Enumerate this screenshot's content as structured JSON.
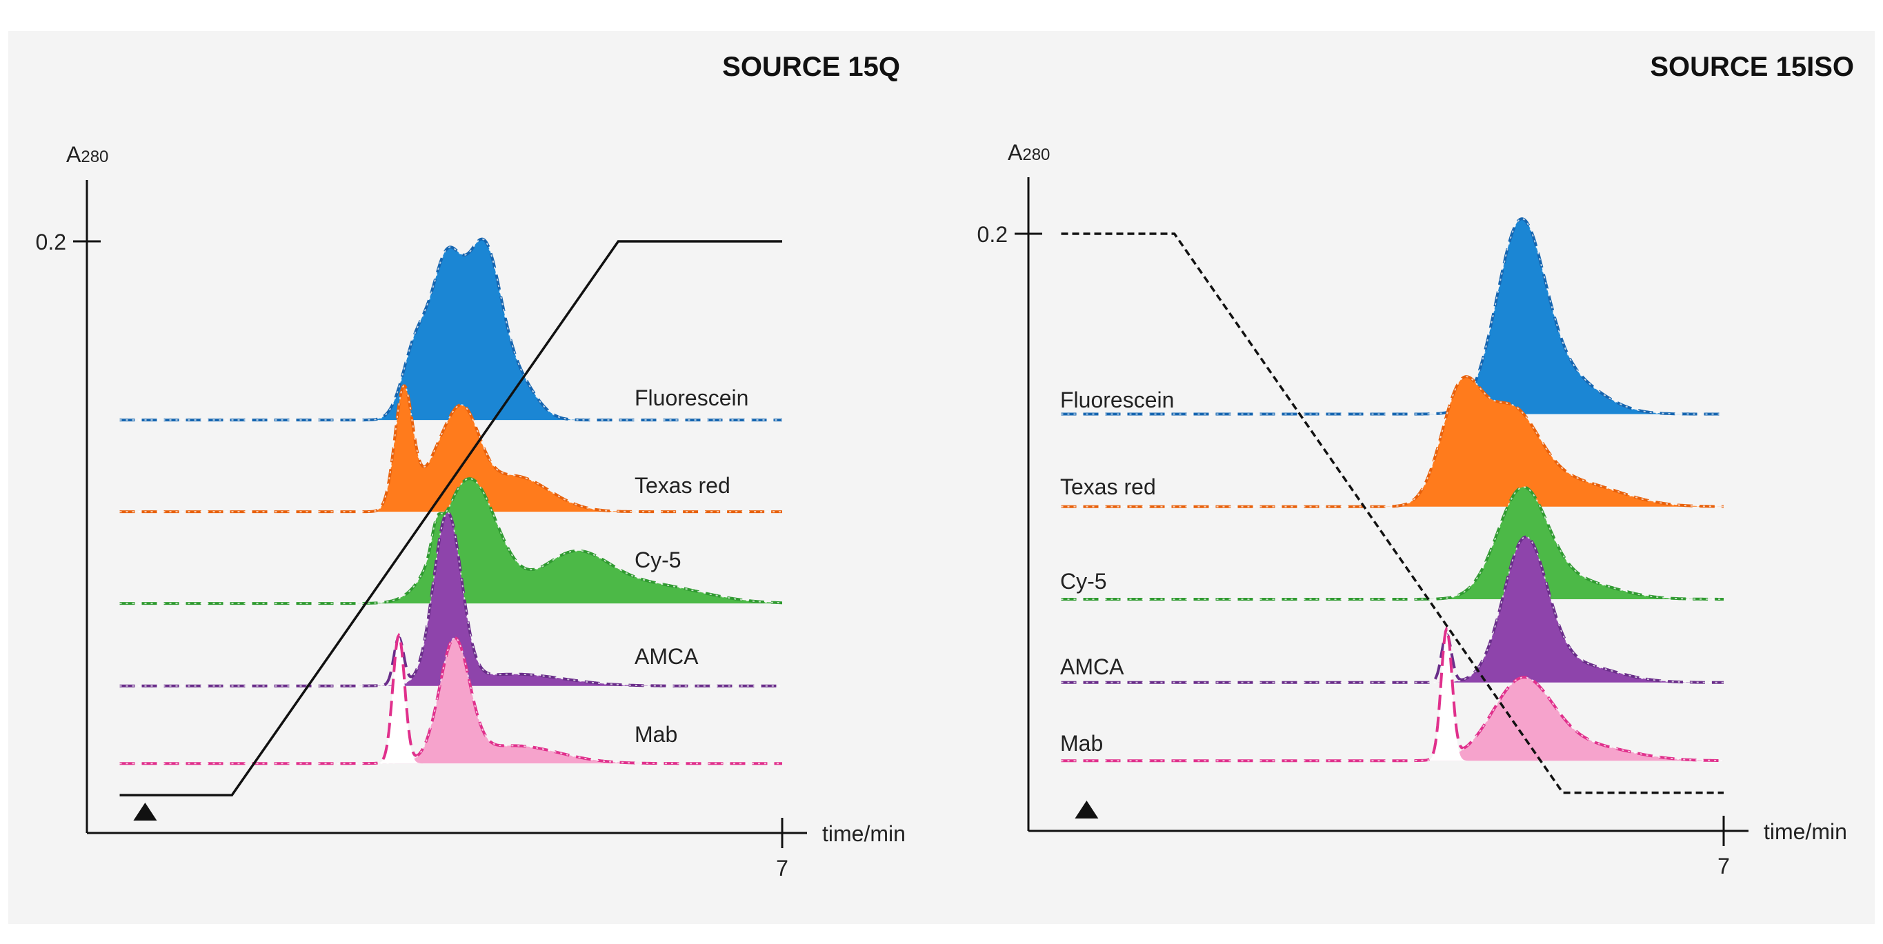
{
  "chart_data": [
    {
      "type": "line",
      "title": "SOURCE 15Q",
      "ylabel": {
        "main": "A",
        "sub": "280"
      },
      "xlabel": "time/min",
      "y_tick": "0.2",
      "x_tick": "7",
      "xlim": [
        0,
        7
      ],
      "ylim": [
        0,
        0.2
      ],
      "label_side": "right",
      "injection_marker_time": 0.6,
      "gradient": {
        "style": "solid",
        "points": [
          [
            0.33,
            0
          ],
          [
            1.46,
            0
          ],
          [
            5.35,
            100
          ],
          [
            7.0,
            100
          ]
        ]
      },
      "series": [
        {
          "name": "Fluorescein",
          "color": "#1b86d4",
          "stroke": "#1565b0",
          "offset": 0.1396,
          "peaks": [
            [
              3.3,
              0.022,
              0.13,
              true,
              false
            ],
            [
              3.62,
              0.052,
              0.16,
              true,
              false
            ],
            [
              4.0,
              0.056,
              0.17,
              true,
              false
            ],
            [
              4.35,
              0.012,
              0.18,
              true,
              false
            ]
          ]
        },
        {
          "name": "Texas red",
          "color": "#ff7b1c",
          "stroke": "#e8600a",
          "offset": 0.1086,
          "peaks": [
            [
              3.19,
              0.041,
              0.09,
              true,
              false
            ],
            [
              3.78,
              0.03,
              0.17,
              true,
              false
            ],
            [
              4.3,
              0.012,
              0.35,
              true,
              false
            ],
            [
              3.5,
              0.012,
              0.15,
              true,
              false
            ]
          ]
        },
        {
          "name": "Cy-5",
          "color": "#4cb947",
          "stroke": "#2f9a30",
          "offset": 0.0776,
          "peaks": [
            [
              3.85,
              0.042,
              0.28,
              true,
              false
            ],
            [
              4.9,
              0.016,
              0.35,
              true,
              false
            ],
            [
              5.7,
              0.006,
              0.5,
              true,
              false
            ],
            [
              3.52,
              0.008,
              0.05,
              true,
              false
            ]
          ]
        },
        {
          "name": "AMCA",
          "color": "#8e44ab",
          "stroke": "#6a2d8a",
          "offset": 0.0497,
          "peaks": [
            [
              3.63,
              0.057,
              0.14,
              true,
              false
            ],
            [
              4.3,
              0.004,
              0.5,
              true,
              false
            ],
            [
              3.14,
              0.016,
              0.05,
              false,
              false
            ]
          ]
        },
        {
          "name": "Mab",
          "color": "#f6a3cc",
          "stroke": "#e0308c",
          "offset": 0.0235,
          "peaks": [
            [
              3.7,
              0.04,
              0.15,
              true,
              false
            ],
            [
              4.3,
              0.006,
              0.45,
              true,
              false
            ],
            [
              3.14,
              0.043,
              0.06,
              false,
              true
            ]
          ]
        }
      ]
    },
    {
      "type": "line",
      "title": "SOURCE 15ISO",
      "ylabel": {
        "main": "A",
        "sub": "280"
      },
      "xlabel": "time/min",
      "y_tick": "0.2",
      "x_tick": "7",
      "xlim": [
        0,
        7
      ],
      "ylim": [
        0,
        0.2
      ],
      "label_side": "left",
      "injection_marker_time": 0.6,
      "gradient": {
        "style": "dashed",
        "points": [
          [
            0.33,
            100
          ],
          [
            1.47,
            100
          ],
          [
            5.38,
            0
          ],
          [
            7.0,
            0
          ]
        ]
      },
      "series": [
        {
          "name": "Fluorescein",
          "color": "#1b86d4",
          "stroke": "#1565b0",
          "offset": 0.1396,
          "peaks": [
            [
              4.95,
              0.06,
              0.24,
              true,
              false
            ],
            [
              5.4,
              0.012,
              0.35,
              true,
              false
            ]
          ]
        },
        {
          "name": "Texas red",
          "color": "#ff7b1c",
          "stroke": "#e8600a",
          "offset": 0.1086,
          "peaks": [
            [
              4.35,
              0.036,
              0.2,
              true,
              false
            ],
            [
              4.85,
              0.03,
              0.28,
              true,
              false
            ],
            [
              5.5,
              0.008,
              0.45,
              true,
              false
            ]
          ]
        },
        {
          "name": "Cy-5",
          "color": "#4cb947",
          "stroke": "#2f9a30",
          "offset": 0.0776,
          "peaks": [
            [
              4.97,
              0.035,
              0.25,
              true,
              false
            ],
            [
              5.5,
              0.006,
              0.4,
              true,
              false
            ]
          ]
        },
        {
          "name": "AMCA",
          "color": "#8e44ab",
          "stroke": "#6a2d8a",
          "offset": 0.0497,
          "peaks": [
            [
              5.0,
              0.046,
              0.22,
              true,
              false
            ],
            [
              5.5,
              0.006,
              0.4,
              true,
              false
            ],
            [
              4.21,
              0.016,
              0.05,
              false,
              false
            ]
          ]
        },
        {
          "name": "Mab",
          "color": "#f6a3cc",
          "stroke": "#e0308c",
          "offset": 0.0235,
          "peaks": [
            [
              4.97,
              0.026,
              0.3,
              true,
              false
            ],
            [
              5.6,
              0.005,
              0.45,
              true,
              false
            ],
            [
              4.21,
              0.043,
              0.055,
              false,
              true
            ]
          ]
        }
      ]
    }
  ]
}
